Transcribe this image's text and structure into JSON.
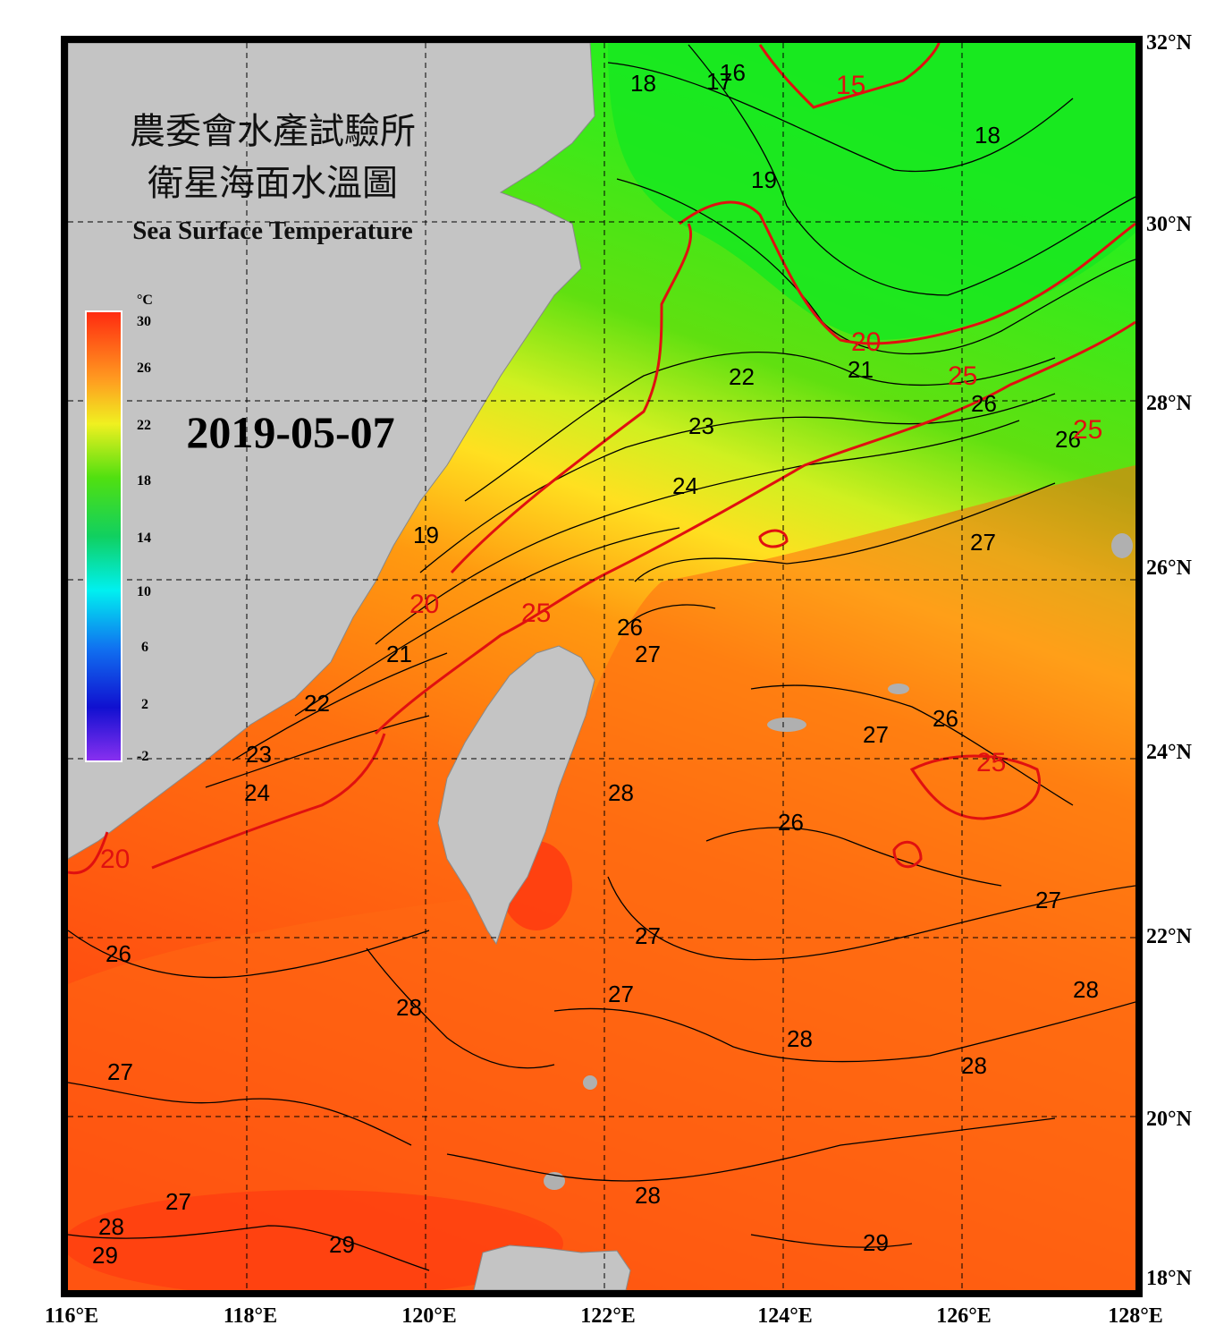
{
  "title": {
    "line1": "農委會水產試驗所",
    "line2": "衛星海面水溫圖",
    "english": "Sea Surface Temperature"
  },
  "date": "2019-05-07",
  "colorbar": {
    "unit": "°C",
    "ticks": [
      "30",
      "26",
      "22",
      "18",
      "14",
      "10",
      "6",
      "2",
      "-2"
    ]
  },
  "axes": {
    "longitude_labels": [
      "116°E",
      "118°E",
      "120°E",
      "122°E",
      "124°E",
      "126°E",
      "128°E"
    ],
    "latitude_labels": [
      "32°N",
      "30°N",
      "28°N",
      "26°N",
      "24°N",
      "22°N",
      "20°N",
      "18°N"
    ]
  },
  "contour_labels_black": [
    "18",
    "17",
    "16",
    "19",
    "18",
    "22",
    "21",
    "23",
    "24",
    "26",
    "26",
    "27",
    "26",
    "27",
    "26",
    "27",
    "22",
    "23",
    "24",
    "19",
    "21",
    "28",
    "26",
    "27",
    "27",
    "28",
    "28",
    "26",
    "27",
    "28",
    "27",
    "28",
    "28",
    "27",
    "28",
    "29",
    "29",
    "29"
  ],
  "contour_labels_red": [
    "15",
    "20",
    "25",
    "20",
    "25",
    "25",
    "25",
    "20"
  ],
  "colors": {
    "land": "#c4c4c4",
    "cold": "#18e030",
    "warm": "#ff5a10",
    "contour_major": "#e01010",
    "contour_minor": "#000000"
  }
}
